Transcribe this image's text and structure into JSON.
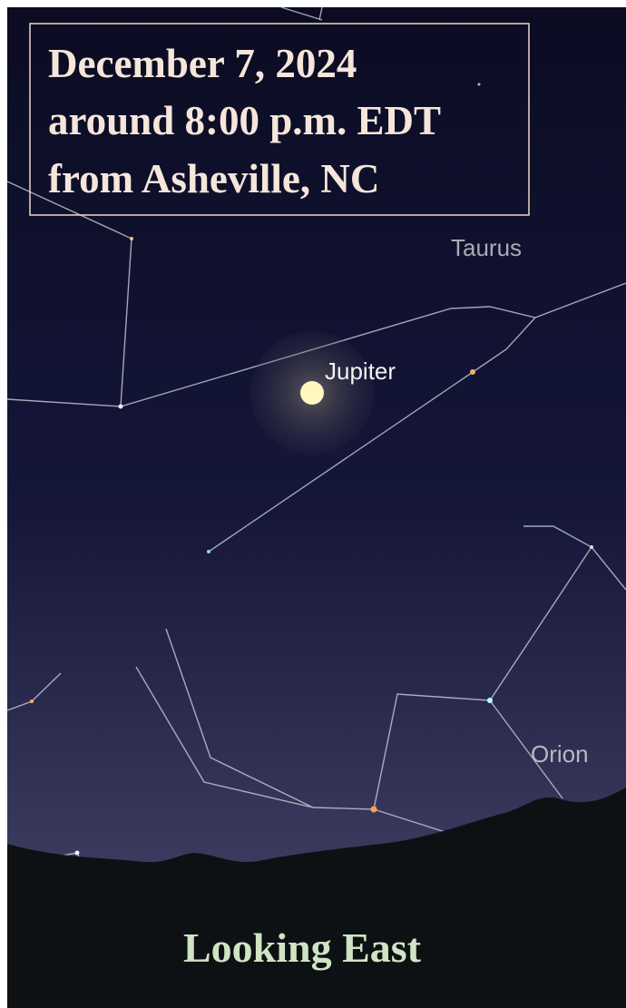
{
  "caption": {
    "lines": [
      "December 7, 2024",
      "around 8:00 p.m. EDT",
      "from Asheville, NC"
    ]
  },
  "labels": {
    "taurus": "Taurus",
    "jupiter": "Jupiter",
    "orion": "Orion"
  },
  "footer": "Looking East"
}
